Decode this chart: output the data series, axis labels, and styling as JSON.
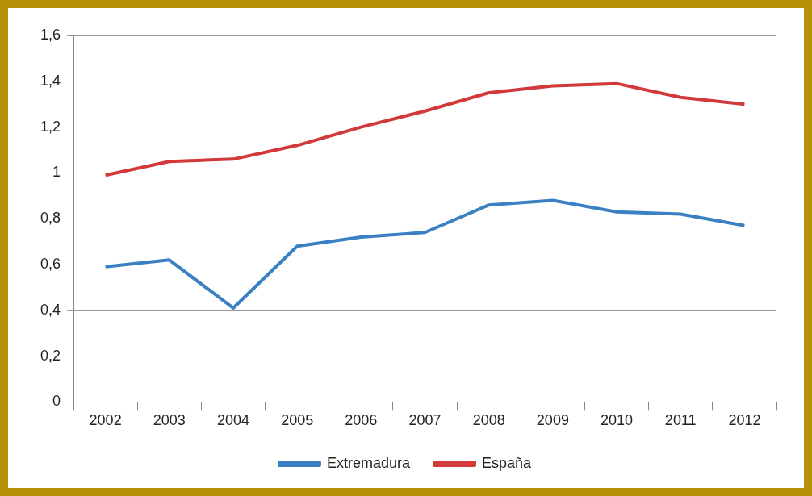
{
  "chart_data": {
    "type": "line",
    "categories": [
      "2002",
      "2003",
      "2004",
      "2005",
      "2006",
      "2007",
      "2008",
      "2009",
      "2010",
      "2011",
      "2012"
    ],
    "series": [
      {
        "name": "Extremadura",
        "color": "#3a80c3",
        "values": [
          0.59,
          0.62,
          0.41,
          0.68,
          0.72,
          0.74,
          0.86,
          0.88,
          0.83,
          0.82,
          0.77
        ]
      },
      {
        "name": "España",
        "color": "#d2393a",
        "values": [
          0.99,
          1.05,
          1.06,
          1.12,
          1.2,
          1.27,
          1.35,
          1.38,
          1.39,
          1.33,
          1.3
        ]
      }
    ],
    "ylim": [
      0,
      1.6
    ],
    "yticks": [
      0,
      {
        "value": 0.2,
        "label": "0,2"
      },
      {
        "value": 0.4,
        "label": "0,4"
      },
      {
        "value": 0.6,
        "label": "0,6"
      },
      {
        "value": 0.8,
        "label": "0,8"
      },
      1,
      {
        "value": 1.2,
        "label": "1,2"
      },
      {
        "value": 1.4,
        "label": "1,4"
      },
      {
        "value": 1.6,
        "label": "1,6"
      }
    ],
    "grid": "y",
    "legend": "bottom",
    "marker": "none",
    "line_style": "solid"
  }
}
